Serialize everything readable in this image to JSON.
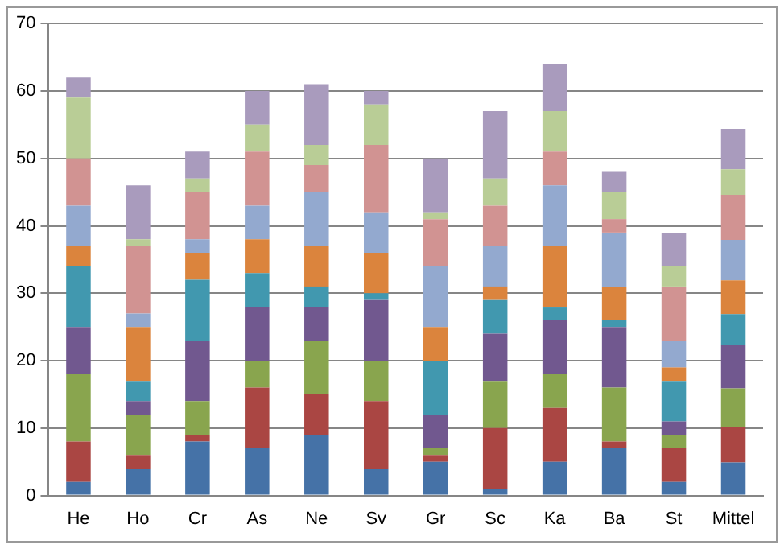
{
  "chart_data": {
    "type": "bar",
    "stacked": true,
    "categories": [
      "He",
      "Ho",
      "Cr",
      "As",
      "Ne",
      "Sv",
      "Gr",
      "Sc",
      "Ka",
      "Ba",
      "St",
      "Mittel"
    ],
    "series": [
      {
        "color": "#4572a7",
        "values": [
          2,
          4,
          8,
          7,
          9,
          4,
          5,
          1,
          5,
          7,
          2,
          4.9
        ]
      },
      {
        "color": "#aa4643",
        "values": [
          6,
          2,
          1,
          9,
          6,
          10,
          1,
          9,
          8,
          1,
          5,
          5.2
        ]
      },
      {
        "color": "#89a54e",
        "values": [
          10,
          6,
          5,
          4,
          8,
          6,
          1,
          7,
          5,
          8,
          2,
          5.8
        ]
      },
      {
        "color": "#71588f",
        "values": [
          7,
          2,
          9,
          8,
          5,
          9,
          5,
          7,
          8,
          9,
          2,
          6.4
        ]
      },
      {
        "color": "#4198af",
        "values": [
          9,
          3,
          9,
          5,
          3,
          1,
          8,
          5,
          2,
          1,
          6,
          4.6
        ]
      },
      {
        "color": "#db843d",
        "values": [
          3,
          8,
          4,
          5,
          6,
          6,
          5,
          2,
          9,
          5,
          2,
          5.0
        ]
      },
      {
        "color": "#93a9cf",
        "values": [
          6,
          2,
          2,
          5,
          8,
          6,
          9,
          6,
          9,
          8,
          4,
          6.0
        ]
      },
      {
        "color": "#d19392",
        "values": [
          7,
          10,
          7,
          8,
          4,
          10,
          7,
          6,
          5,
          2,
          8,
          6.7
        ]
      },
      {
        "color": "#b9cd96",
        "values": [
          9,
          1,
          2,
          4,
          3,
          6,
          1,
          4,
          6,
          4,
          3,
          3.8
        ]
      },
      {
        "color": "#a99bbd",
        "values": [
          3,
          8,
          4,
          5,
          9,
          2,
          8,
          10,
          7,
          3,
          5,
          6.0
        ]
      }
    ],
    "ylim": [
      0,
      70
    ],
    "yticks": [
      0,
      10,
      20,
      30,
      40,
      50,
      60,
      70
    ],
    "grid": "y",
    "legend": false
  }
}
